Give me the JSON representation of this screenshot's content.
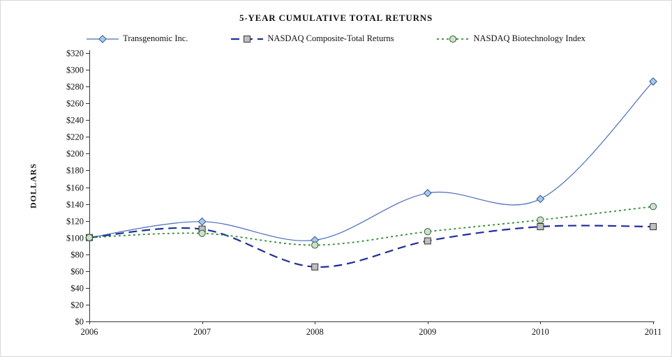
{
  "chart_data": {
    "type": "line",
    "title": "5-YEAR CUMULATIVE  TOTAL RETURNS",
    "xlabel": "",
    "ylabel": "DOLLARS",
    "categories": [
      "2006",
      "2007",
      "2008",
      "2009",
      "2010",
      "2011"
    ],
    "ylim": [
      0,
      320
    ],
    "ytick_step": 20,
    "ytick_prefix": "$",
    "grid": false,
    "legend_position": "top",
    "axis_color": "#333333",
    "series": [
      {
        "name": "Transgenomic Inc.",
        "values": [
          100,
          119,
          97,
          153,
          146,
          286
        ],
        "color": "#4a6bbd",
        "width": 1.2,
        "dash": "solid",
        "marker": "diamond",
        "marker_fill": "#a9c9e8",
        "marker_stroke": "#2f5597"
      },
      {
        "name": "NASDAQ Composite-Total Returns",
        "values": [
          100,
          110,
          65,
          96,
          113,
          113
        ],
        "color": "#1f2f99",
        "width": 2.2,
        "dash": "dashed",
        "marker": "square",
        "marker_fill": "#bfbfbf",
        "marker_stroke": "#333333"
      },
      {
        "name": "NASDAQ Biotechnology Index",
        "values": [
          100,
          105,
          91,
          107,
          121,
          137
        ],
        "color": "#2e8b2e",
        "width": 1.8,
        "dash": "dotted",
        "marker": "circle",
        "marker_fill": "#d9d9d9",
        "marker_stroke": "#1e6e1e"
      }
    ]
  }
}
